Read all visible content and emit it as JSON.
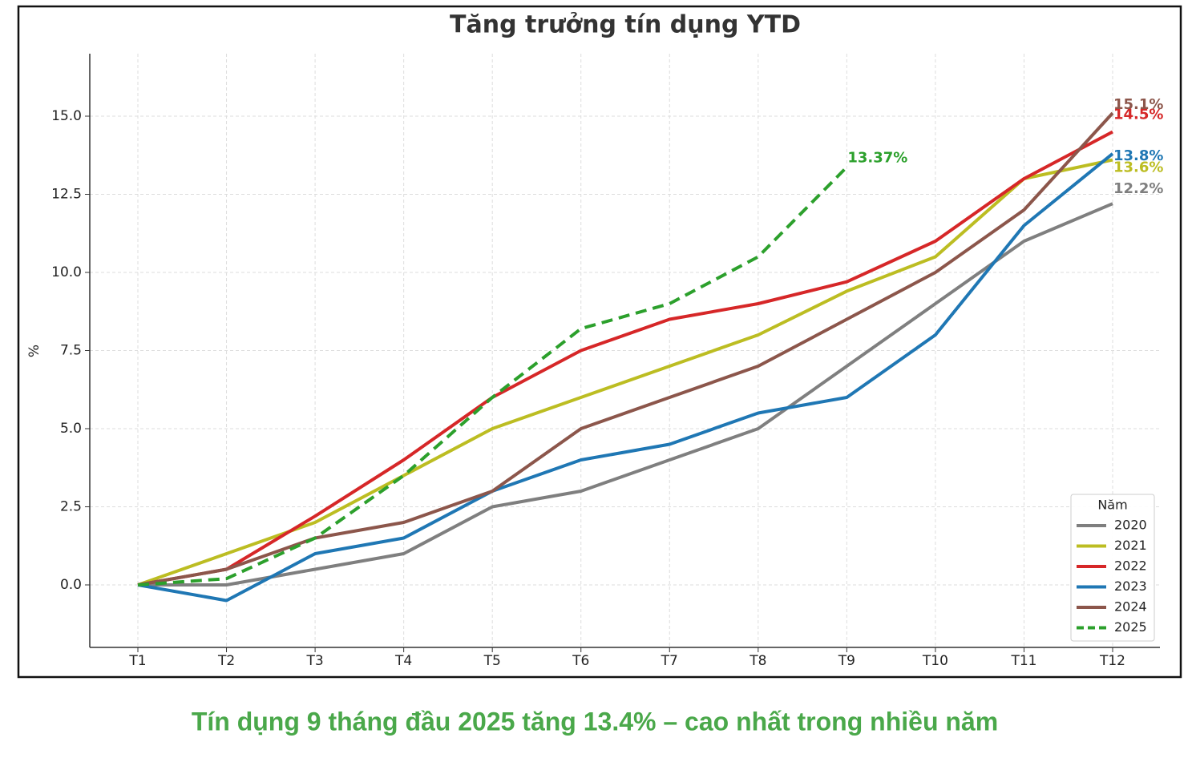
{
  "chart_data": {
    "type": "line",
    "title": "Tăng trưởng tín dụng YTD",
    "y_label": "%",
    "categories": [
      "T1",
      "T2",
      "T3",
      "T4",
      "T5",
      "T6",
      "T7",
      "T8",
      "T9",
      "T10",
      "T11",
      "T12"
    ],
    "series": [
      {
        "name": "2020",
        "color": "#7f7f7f",
        "style": "solid",
        "values": [
          0,
          0,
          0.5,
          1,
          2.5,
          3,
          4,
          5,
          7,
          9,
          11,
          12.2
        ],
        "value_labels": [
          null,
          null,
          null,
          null,
          null,
          null,
          null,
          null,
          null,
          null,
          null,
          "12.2%"
        ]
      },
      {
        "name": "2021",
        "color": "#bcbd22",
        "style": "solid",
        "values": [
          0,
          1,
          2,
          3.5,
          5,
          6,
          7,
          8,
          9.4,
          10.5,
          13,
          13.6
        ],
        "value_labels": [
          null,
          null,
          null,
          null,
          null,
          null,
          null,
          null,
          null,
          null,
          null,
          "13.6%"
        ]
      },
      {
        "name": "2022",
        "color": "#d62728",
        "style": "solid",
        "values": [
          0,
          0.5,
          2.2,
          4,
          6,
          7.5,
          8.5,
          9,
          9.7,
          11,
          13,
          14.5
        ],
        "value_labels": [
          null,
          null,
          null,
          null,
          null,
          null,
          null,
          null,
          null,
          null,
          null,
          "14.5%"
        ]
      },
      {
        "name": "2023",
        "color": "#1f77b4",
        "style": "solid",
        "values": [
          0,
          -0.5,
          1,
          1.5,
          3,
          4,
          4.5,
          5.5,
          6,
          8,
          11.5,
          13.8
        ],
        "value_labels": [
          null,
          null,
          null,
          null,
          null,
          null,
          null,
          null,
          null,
          null,
          null,
          "13.8%"
        ]
      },
      {
        "name": "2024",
        "color": "#8c564b",
        "style": "solid",
        "values": [
          0,
          0.5,
          1.5,
          2,
          3,
          5,
          6,
          7,
          8.5,
          10,
          12,
          15.1
        ],
        "value_labels": [
          null,
          null,
          null,
          null,
          null,
          null,
          null,
          null,
          null,
          null,
          null,
          "15.1%"
        ]
      },
      {
        "name": "2025",
        "color": "#2ca02c",
        "style": "dashed",
        "values": [
          0,
          0.2,
          1.5,
          3.5,
          6,
          8.2,
          9,
          10.5,
          13.37,
          null,
          null,
          null
        ],
        "value_labels": [
          null,
          null,
          null,
          null,
          null,
          null,
          null,
          null,
          "13.37%",
          null,
          null,
          null
        ]
      }
    ],
    "ylim": [
      -2,
      17
    ],
    "yticks": [
      {
        "value": 0,
        "label": "0.0"
      },
      2.5,
      {
        "value": 5,
        "label": "5.0"
      },
      7.5,
      {
        "value": 10,
        "label": "10.0"
      },
      12.5,
      {
        "value": 15,
        "label": "15.0"
      }
    ],
    "grid": true,
    "legend_title": "Năm",
    "legend_position": "lower right"
  },
  "caption": "Tín dụng 9 tháng đầu 2025 tăng 13.4% – cao nhất trong nhiều năm"
}
